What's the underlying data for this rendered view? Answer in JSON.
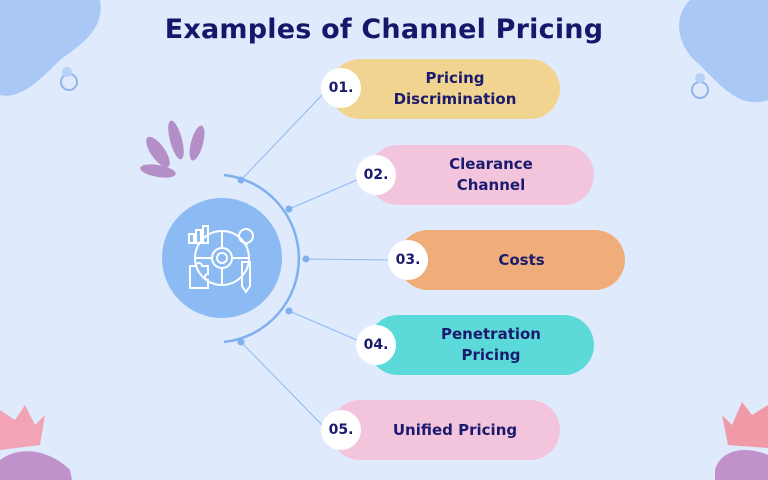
{
  "title": "Examples of Channel Pricing",
  "hub": {
    "icon": "strategy-gear-icon"
  },
  "items": [
    {
      "number": "01.",
      "label": "Pricing Discrimination",
      "color": "#f1d48f"
    },
    {
      "number": "02.",
      "label": "Clearance Channel",
      "color": "#f3c5dd"
    },
    {
      "number": "03.",
      "label": "Costs",
      "color": "#f1ad79"
    },
    {
      "number": "04.",
      "label": "Penetration Pricing",
      "color": "#5cd9d9"
    },
    {
      "number": "05.",
      "label": "Unified Pricing",
      "color": "#f3c5dd"
    }
  ],
  "colors": {
    "background": "#dfeafc",
    "title": "#16166b",
    "hub": "#8cbaf2",
    "connector": "#7fb0ee"
  }
}
